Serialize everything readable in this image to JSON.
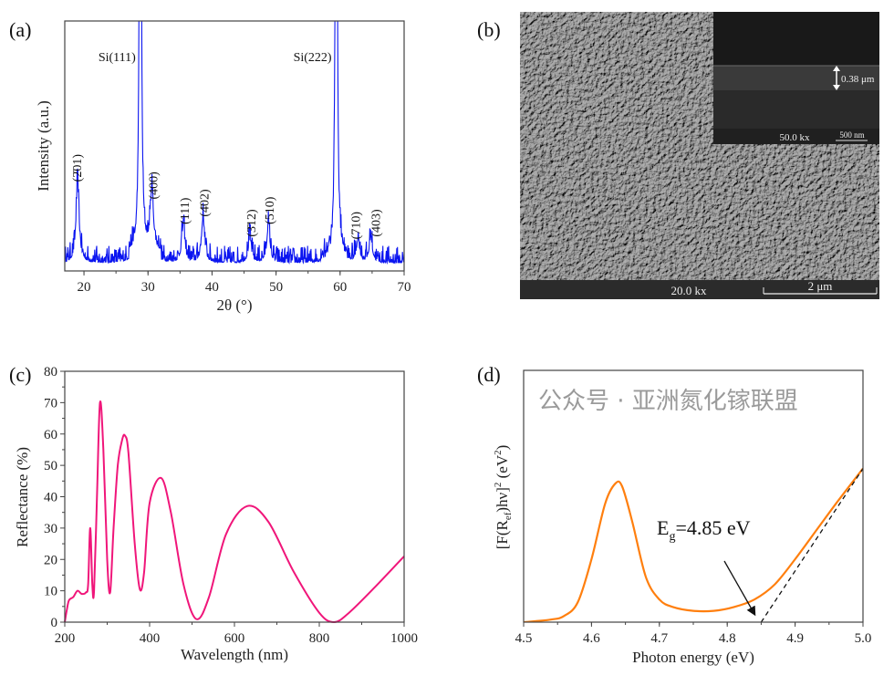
{
  "panels": {
    "a": {
      "label": "(a)"
    },
    "b": {
      "label": "(b)",
      "inset_thickness": "0.38 μm",
      "inset_mag": "50.0 kx",
      "inset_scale": "500 nm",
      "mag": "20.0 kx",
      "scale": "2 μm"
    },
    "c": {
      "label": "(c)"
    },
    "d": {
      "label": "(d)"
    }
  },
  "watermark": "公众号 · 亚洲氮化镓联盟",
  "chart_data": [
    {
      "panel": "a",
      "type": "line",
      "xlabel": "2θ (°)",
      "ylabel": "Intensity (a.u.)",
      "xlim": [
        17,
        70
      ],
      "xticks": [
        20,
        30,
        40,
        50,
        60,
        70
      ],
      "yticks_shown": false,
      "color": "#0a14f0",
      "peaks": [
        {
          "x": 19.0,
          "y": 32,
          "label": "(2̄01)"
        },
        {
          "x": 28.8,
          "y": 400,
          "label": "Si(111)"
        },
        {
          "x": 30.6,
          "y": 25,
          "label": "(400)"
        },
        {
          "x": 35.5,
          "y": 15,
          "label": "(111)"
        },
        {
          "x": 38.6,
          "y": 18,
          "label": "(4̄02)"
        },
        {
          "x": 45.9,
          "y": 10,
          "label": "(3̄12)"
        },
        {
          "x": 48.8,
          "y": 15,
          "label": "(510)"
        },
        {
          "x": 59.4,
          "y": 400,
          "label": "Si(222)"
        },
        {
          "x": 62.8,
          "y": 9,
          "label": "(710)"
        },
        {
          "x": 64.8,
          "y": 10,
          "label": "(403)"
        }
      ]
    },
    {
      "panel": "c",
      "type": "line",
      "xlabel": "Wavelength (nm)",
      "ylabel": "Reflectance (%)",
      "xlim": [
        200,
        1000
      ],
      "ylim": [
        0,
        80
      ],
      "xticks": [
        200,
        400,
        600,
        800,
        1000
      ],
      "yticks": [
        0,
        10,
        20,
        30,
        40,
        50,
        60,
        70,
        80
      ],
      "color": "#f0167a",
      "x": [
        200,
        205,
        210,
        220,
        230,
        240,
        250,
        255,
        260,
        265,
        269,
        276,
        283,
        291,
        300,
        307,
        315,
        325,
        335,
        342,
        350,
        365,
        377,
        387,
        400,
        427,
        450,
        480,
        510,
        540,
        580,
        630,
        680,
        740,
        800,
        835,
        870,
        930,
        1000
      ],
      "y": [
        0,
        4,
        7,
        8,
        10,
        9,
        9.5,
        12,
        30,
        12,
        10,
        40,
        70,
        55,
        20,
        9.5,
        30,
        50,
        58,
        59.5,
        54,
        25,
        10.5,
        16,
        38,
        46,
        35,
        12,
        1,
        8,
        28,
        37,
        32,
        16,
        3,
        0,
        3,
        11,
        21
      ]
    },
    {
      "panel": "d",
      "type": "line",
      "xlabel": "Photon energy (eV)",
      "ylabel_parts": [
        "[F(R",
        "ef",
        ")hν]",
        "2",
        " (eV",
        "2",
        ")"
      ],
      "xlim": [
        4.5,
        5.0
      ],
      "ylim": [
        0,
        1
      ],
      "xticks": [
        "4.5",
        "4.6",
        "4.7",
        "4.8",
        "4.9",
        "5.0"
      ],
      "yticks_shown": false,
      "color": "#ff7f0e",
      "x": [
        4.5,
        4.54,
        4.56,
        4.58,
        4.6,
        4.62,
        4.635,
        4.645,
        4.66,
        4.68,
        4.7,
        4.72,
        4.75,
        4.78,
        4.81,
        4.84,
        4.87,
        4.9,
        4.93,
        4.96,
        5.0
      ],
      "y": [
        0,
        0.01,
        0.025,
        0.08,
        0.25,
        0.47,
        0.55,
        0.54,
        0.4,
        0.18,
        0.09,
        0.06,
        0.045,
        0.045,
        0.06,
        0.09,
        0.15,
        0.25,
        0.36,
        0.47,
        0.61
      ],
      "annotation": {
        "text_main": "E",
        "text_sub": "g",
        "text_rest": "=4.85 eV",
        "value": 4.85
      },
      "tangent": {
        "x": [
          4.85,
          5.0
        ],
        "y": [
          0,
          0.61
        ]
      }
    }
  ]
}
